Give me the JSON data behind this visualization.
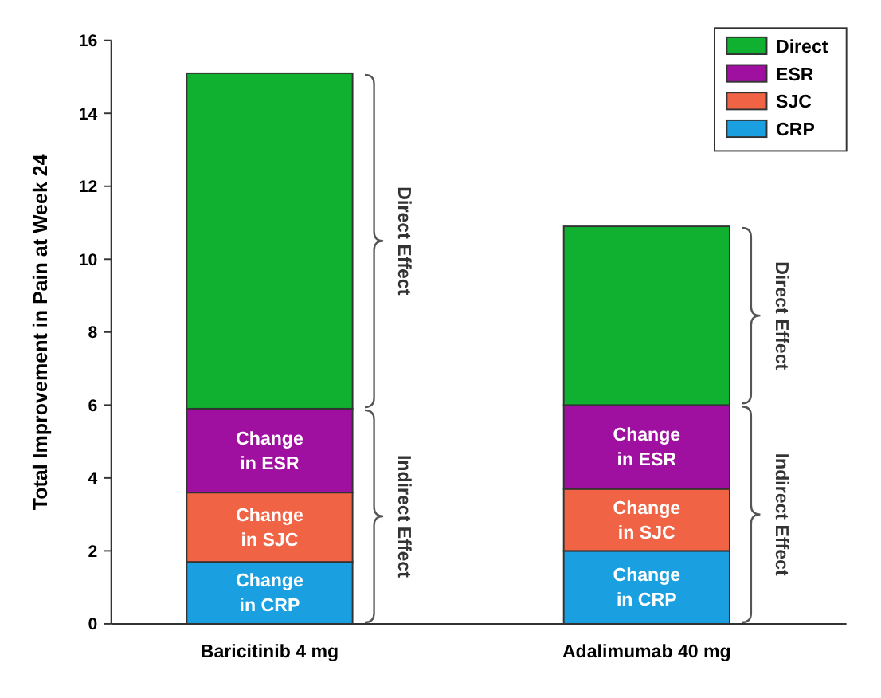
{
  "chart_data": {
    "type": "bar",
    "stacked": true,
    "ylabel": "Total Improvement in Pain at Week 24",
    "categories": [
      "Baricitinib 4 mg",
      "Adalimumab 40 mg"
    ],
    "series": [
      {
        "name": "CRP",
        "color": "#1aa0e0",
        "values": [
          1.7,
          2.0
        ],
        "value_labels": [
          "Change\nin CRP",
          "Change\nin CRP"
        ]
      },
      {
        "name": "SJC",
        "color": "#f06445",
        "values": [
          1.9,
          1.7
        ],
        "value_labels": [
          "Change\nin SJC",
          "Change\nin SJC"
        ]
      },
      {
        "name": "ESR",
        "color": "#a010a0",
        "values": [
          2.3,
          2.3
        ],
        "value_labels": [
          "Change\nin ESR",
          "Change\nin ESR"
        ]
      },
      {
        "name": "Direct",
        "color": "#10b030",
        "values": [
          9.2,
          4.9
        ]
      }
    ],
    "ylim": [
      0,
      16
    ],
    "yticks": [
      0,
      2,
      4,
      6,
      8,
      10,
      12,
      14,
      16
    ],
    "legend": "top right",
    "annotations": [
      "Direct Effect",
      "Indirect Effect",
      "Direct Effect",
      "Indirect Effect"
    ]
  }
}
